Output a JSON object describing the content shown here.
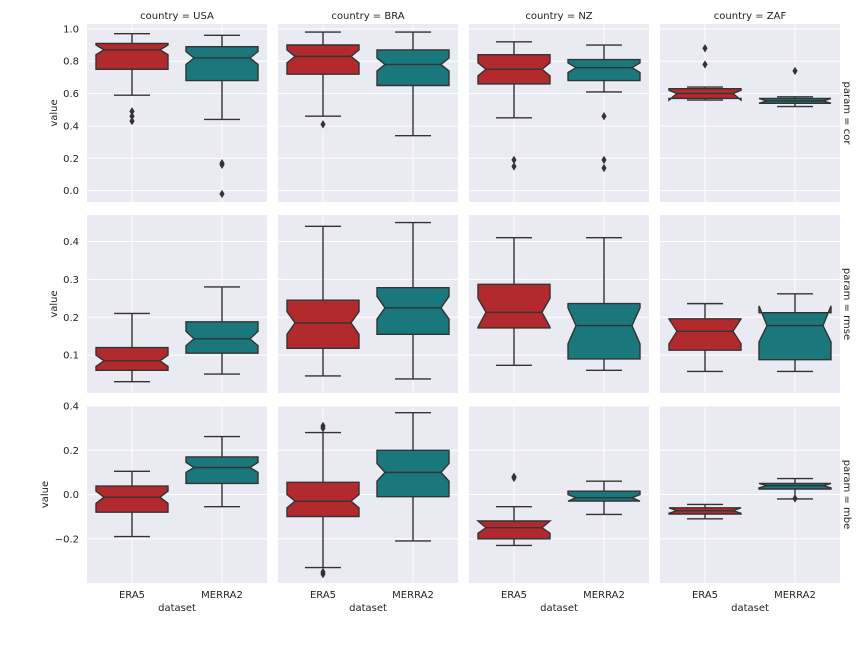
{
  "chart_data": {
    "type": "box",
    "layout": "facet-grid",
    "x_label": "dataset",
    "y_label": "value",
    "col_var": "country",
    "row_var": "param",
    "columns": [
      "country = USA",
      "country = BRA",
      "country = NZ",
      "country = ZAF"
    ],
    "rows": [
      "param = cor",
      "param = rmse",
      "param = mbe"
    ],
    "categories": [
      "ERA5",
      "MERRA2"
    ],
    "series_colors": {
      "ERA5": "#b22a2e",
      "MERRA2": "#1a777c"
    },
    "row_scales": [
      {
        "param": "cor",
        "ylim": [
          -0.07,
          1.03
        ],
        "ticks": [
          0.0,
          0.2,
          0.4,
          0.6,
          0.8,
          1.0
        ],
        "tick_labels": [
          "0.0",
          "0.2",
          "0.4",
          "0.6",
          "0.8",
          "1.0"
        ]
      },
      {
        "param": "rmse",
        "ylim": [
          0.0,
          0.47
        ],
        "ticks": [
          0.1,
          0.2,
          0.3,
          0.4
        ],
        "tick_labels": [
          "0.1",
          "0.2",
          "0.3",
          "0.4"
        ]
      },
      {
        "param": "mbe",
        "ylim": [
          -0.4,
          0.4
        ],
        "ticks": [
          -0.2,
          0.0,
          0.2,
          0.4
        ],
        "tick_labels": [
          "−0.2",
          "0.0",
          "0.2",
          "0.4"
        ]
      }
    ],
    "facets": [
      {
        "row": 0,
        "col": 0,
        "boxes": [
          {
            "category": "ERA5",
            "whislo": 0.59,
            "q1": 0.75,
            "med": 0.87,
            "q3": 0.91,
            "whishi": 0.97,
            "notch_lo": 0.84,
            "notch_hi": 0.9,
            "fliers": [
              0.49,
              0.46,
              0.43
            ]
          },
          {
            "category": "MERRA2",
            "whislo": 0.44,
            "q1": 0.68,
            "med": 0.82,
            "q3": 0.89,
            "whishi": 0.96,
            "notch_lo": 0.78,
            "notch_hi": 0.86,
            "fliers": [
              0.17,
              0.16,
              -0.02
            ]
          }
        ]
      },
      {
        "row": 0,
        "col": 1,
        "boxes": [
          {
            "category": "ERA5",
            "whislo": 0.46,
            "q1": 0.72,
            "med": 0.83,
            "q3": 0.9,
            "whishi": 0.98,
            "notch_lo": 0.79,
            "notch_hi": 0.87,
            "fliers": [
              0.41
            ]
          },
          {
            "category": "MERRA2",
            "whislo": 0.34,
            "q1": 0.65,
            "med": 0.78,
            "q3": 0.87,
            "whishi": 0.98,
            "notch_lo": 0.74,
            "notch_hi": 0.82,
            "fliers": []
          }
        ]
      },
      {
        "row": 0,
        "col": 2,
        "boxes": [
          {
            "category": "ERA5",
            "whislo": 0.45,
            "q1": 0.66,
            "med": 0.75,
            "q3": 0.84,
            "whishi": 0.92,
            "notch_lo": 0.71,
            "notch_hi": 0.79,
            "fliers": [
              0.19,
              0.15
            ]
          },
          {
            "category": "MERRA2",
            "whislo": 0.61,
            "q1": 0.68,
            "med": 0.76,
            "q3": 0.81,
            "whishi": 0.9,
            "notch_lo": 0.73,
            "notch_hi": 0.79,
            "fliers": [
              0.46,
              0.19,
              0.14
            ]
          }
        ]
      },
      {
        "row": 0,
        "col": 3,
        "boxes": [
          {
            "category": "ERA5",
            "whislo": 0.56,
            "q1": 0.57,
            "med": 0.6,
            "q3": 0.63,
            "whishi": 0.64,
            "notch_lo": 0.56,
            "notch_hi": 0.62,
            "fliers": [
              0.88,
              0.78
            ]
          },
          {
            "category": "MERRA2",
            "whislo": 0.52,
            "q1": 0.54,
            "med": 0.555,
            "q3": 0.57,
            "whishi": 0.58,
            "notch_lo": 0.54,
            "notch_hi": 0.57,
            "fliers": [
              0.74
            ]
          }
        ]
      },
      {
        "row": 1,
        "col": 0,
        "boxes": [
          {
            "category": "ERA5",
            "whislo": 0.03,
            "q1": 0.06,
            "med": 0.085,
            "q3": 0.12,
            "whishi": 0.21,
            "notch_lo": 0.07,
            "notch_hi": 0.1,
            "fliers": []
          },
          {
            "category": "MERRA2",
            "whislo": 0.05,
            "q1": 0.105,
            "med": 0.143,
            "q3": 0.188,
            "whishi": 0.28,
            "notch_lo": 0.125,
            "notch_hi": 0.163,
            "fliers": []
          }
        ]
      },
      {
        "row": 1,
        "col": 1,
        "boxes": [
          {
            "category": "ERA5",
            "whislo": 0.045,
            "q1": 0.118,
            "med": 0.185,
            "q3": 0.245,
            "whishi": 0.44,
            "notch_lo": 0.155,
            "notch_hi": 0.215,
            "fliers": []
          },
          {
            "category": "MERRA2",
            "whislo": 0.037,
            "q1": 0.155,
            "med": 0.225,
            "q3": 0.278,
            "whishi": 0.45,
            "notch_lo": 0.195,
            "notch_hi": 0.255,
            "fliers": []
          }
        ]
      },
      {
        "row": 1,
        "col": 2,
        "boxes": [
          {
            "category": "ERA5",
            "whislo": 0.073,
            "q1": 0.172,
            "med": 0.213,
            "q3": 0.287,
            "whishi": 0.41,
            "notch_lo": 0.174,
            "notch_hi": 0.25,
            "fliers": []
          },
          {
            "category": "MERRA2",
            "whislo": 0.06,
            "q1": 0.09,
            "med": 0.178,
            "q3": 0.236,
            "whishi": 0.41,
            "notch_lo": 0.13,
            "notch_hi": 0.225,
            "fliers": []
          }
        ]
      },
      {
        "row": 1,
        "col": 3,
        "boxes": [
          {
            "category": "ERA5",
            "whislo": 0.057,
            "q1": 0.113,
            "med": 0.163,
            "q3": 0.196,
            "whishi": 0.236,
            "notch_lo": 0.13,
            "notch_hi": 0.195,
            "fliers": []
          },
          {
            "category": "MERRA2",
            "whislo": 0.057,
            "q1": 0.088,
            "med": 0.178,
            "q3": 0.212,
            "whishi": 0.262,
            "notch_lo": 0.135,
            "notch_hi": 0.23,
            "fliers": []
          }
        ]
      },
      {
        "row": 2,
        "col": 0,
        "boxes": [
          {
            "category": "ERA5",
            "whislo": -0.19,
            "q1": -0.08,
            "med": -0.012,
            "q3": 0.038,
            "whishi": 0.105,
            "notch_lo": -0.04,
            "notch_hi": 0.015,
            "fliers": []
          },
          {
            "category": "MERRA2",
            "whislo": -0.055,
            "q1": 0.05,
            "med": 0.122,
            "q3": 0.17,
            "whishi": 0.262,
            "notch_lo": 0.1,
            "notch_hi": 0.145,
            "fliers": []
          }
        ]
      },
      {
        "row": 2,
        "col": 1,
        "boxes": [
          {
            "category": "ERA5",
            "whislo": -0.33,
            "q1": -0.1,
            "med": -0.03,
            "q3": 0.055,
            "whishi": 0.28,
            "notch_lo": -0.06,
            "notch_hi": 0.0,
            "fliers": [
              0.31,
              0.3,
              -0.35,
              -0.36
            ]
          },
          {
            "category": "MERRA2",
            "whislo": -0.21,
            "q1": -0.01,
            "med": 0.1,
            "q3": 0.2,
            "whishi": 0.37,
            "notch_lo": 0.06,
            "notch_hi": 0.14,
            "fliers": []
          }
        ]
      },
      {
        "row": 2,
        "col": 2,
        "boxes": [
          {
            "category": "ERA5",
            "whislo": -0.23,
            "q1": -0.2,
            "med": -0.15,
            "q3": -0.12,
            "whishi": -0.055,
            "notch_lo": -0.175,
            "notch_hi": -0.12,
            "fliers": [
              0.08,
              0.075
            ]
          },
          {
            "category": "MERRA2",
            "whislo": -0.09,
            "q1": -0.03,
            "med": -0.015,
            "q3": 0.015,
            "whishi": 0.06,
            "notch_lo": -0.03,
            "notch_hi": 0.0,
            "fliers": []
          }
        ]
      },
      {
        "row": 2,
        "col": 3,
        "boxes": [
          {
            "category": "ERA5",
            "whislo": -0.11,
            "q1": -0.088,
            "med": -0.073,
            "q3": -0.06,
            "whishi": -0.045,
            "notch_lo": -0.085,
            "notch_hi": -0.06,
            "fliers": []
          },
          {
            "category": "MERRA2",
            "whislo": -0.02,
            "q1": 0.025,
            "med": 0.04,
            "q3": 0.05,
            "whishi": 0.072,
            "notch_lo": 0.03,
            "notch_hi": 0.05,
            "fliers": [
              -0.018
            ]
          }
        ]
      }
    ]
  }
}
